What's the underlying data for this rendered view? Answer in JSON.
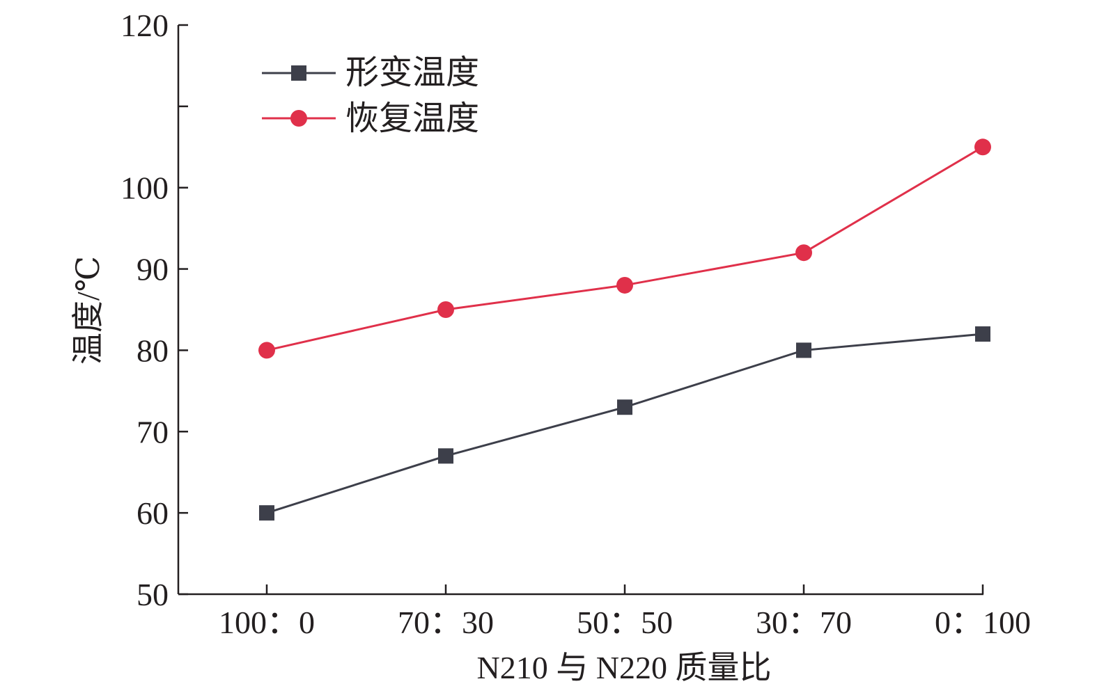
{
  "chart_data": {
    "type": "line",
    "categories": [
      "100：0",
      "70：30",
      "50：50",
      "30：70",
      "0：100"
    ],
    "series": [
      {
        "name": "形变温度",
        "values": [
          60,
          67,
          73,
          80,
          82
        ],
        "color": "#3d3f4a",
        "marker": "square"
      },
      {
        "name": "恢复温度",
        "values": [
          80,
          85,
          88,
          92,
          105
        ],
        "color": "#e0304a",
        "marker": "circle"
      }
    ],
    "xlabel": "N210 与 N220 质量比",
    "ylabel": "温度/℃",
    "ylim": [
      50,
      120
    ],
    "yticks": [
      50,
      60,
      70,
      80,
      90,
      100,
      110,
      120
    ],
    "ytick_labels": [
      "50",
      "60",
      "70",
      "80",
      "90",
      "100",
      "",
      "120"
    ],
    "grid": false,
    "legend_position": "top-left"
  }
}
